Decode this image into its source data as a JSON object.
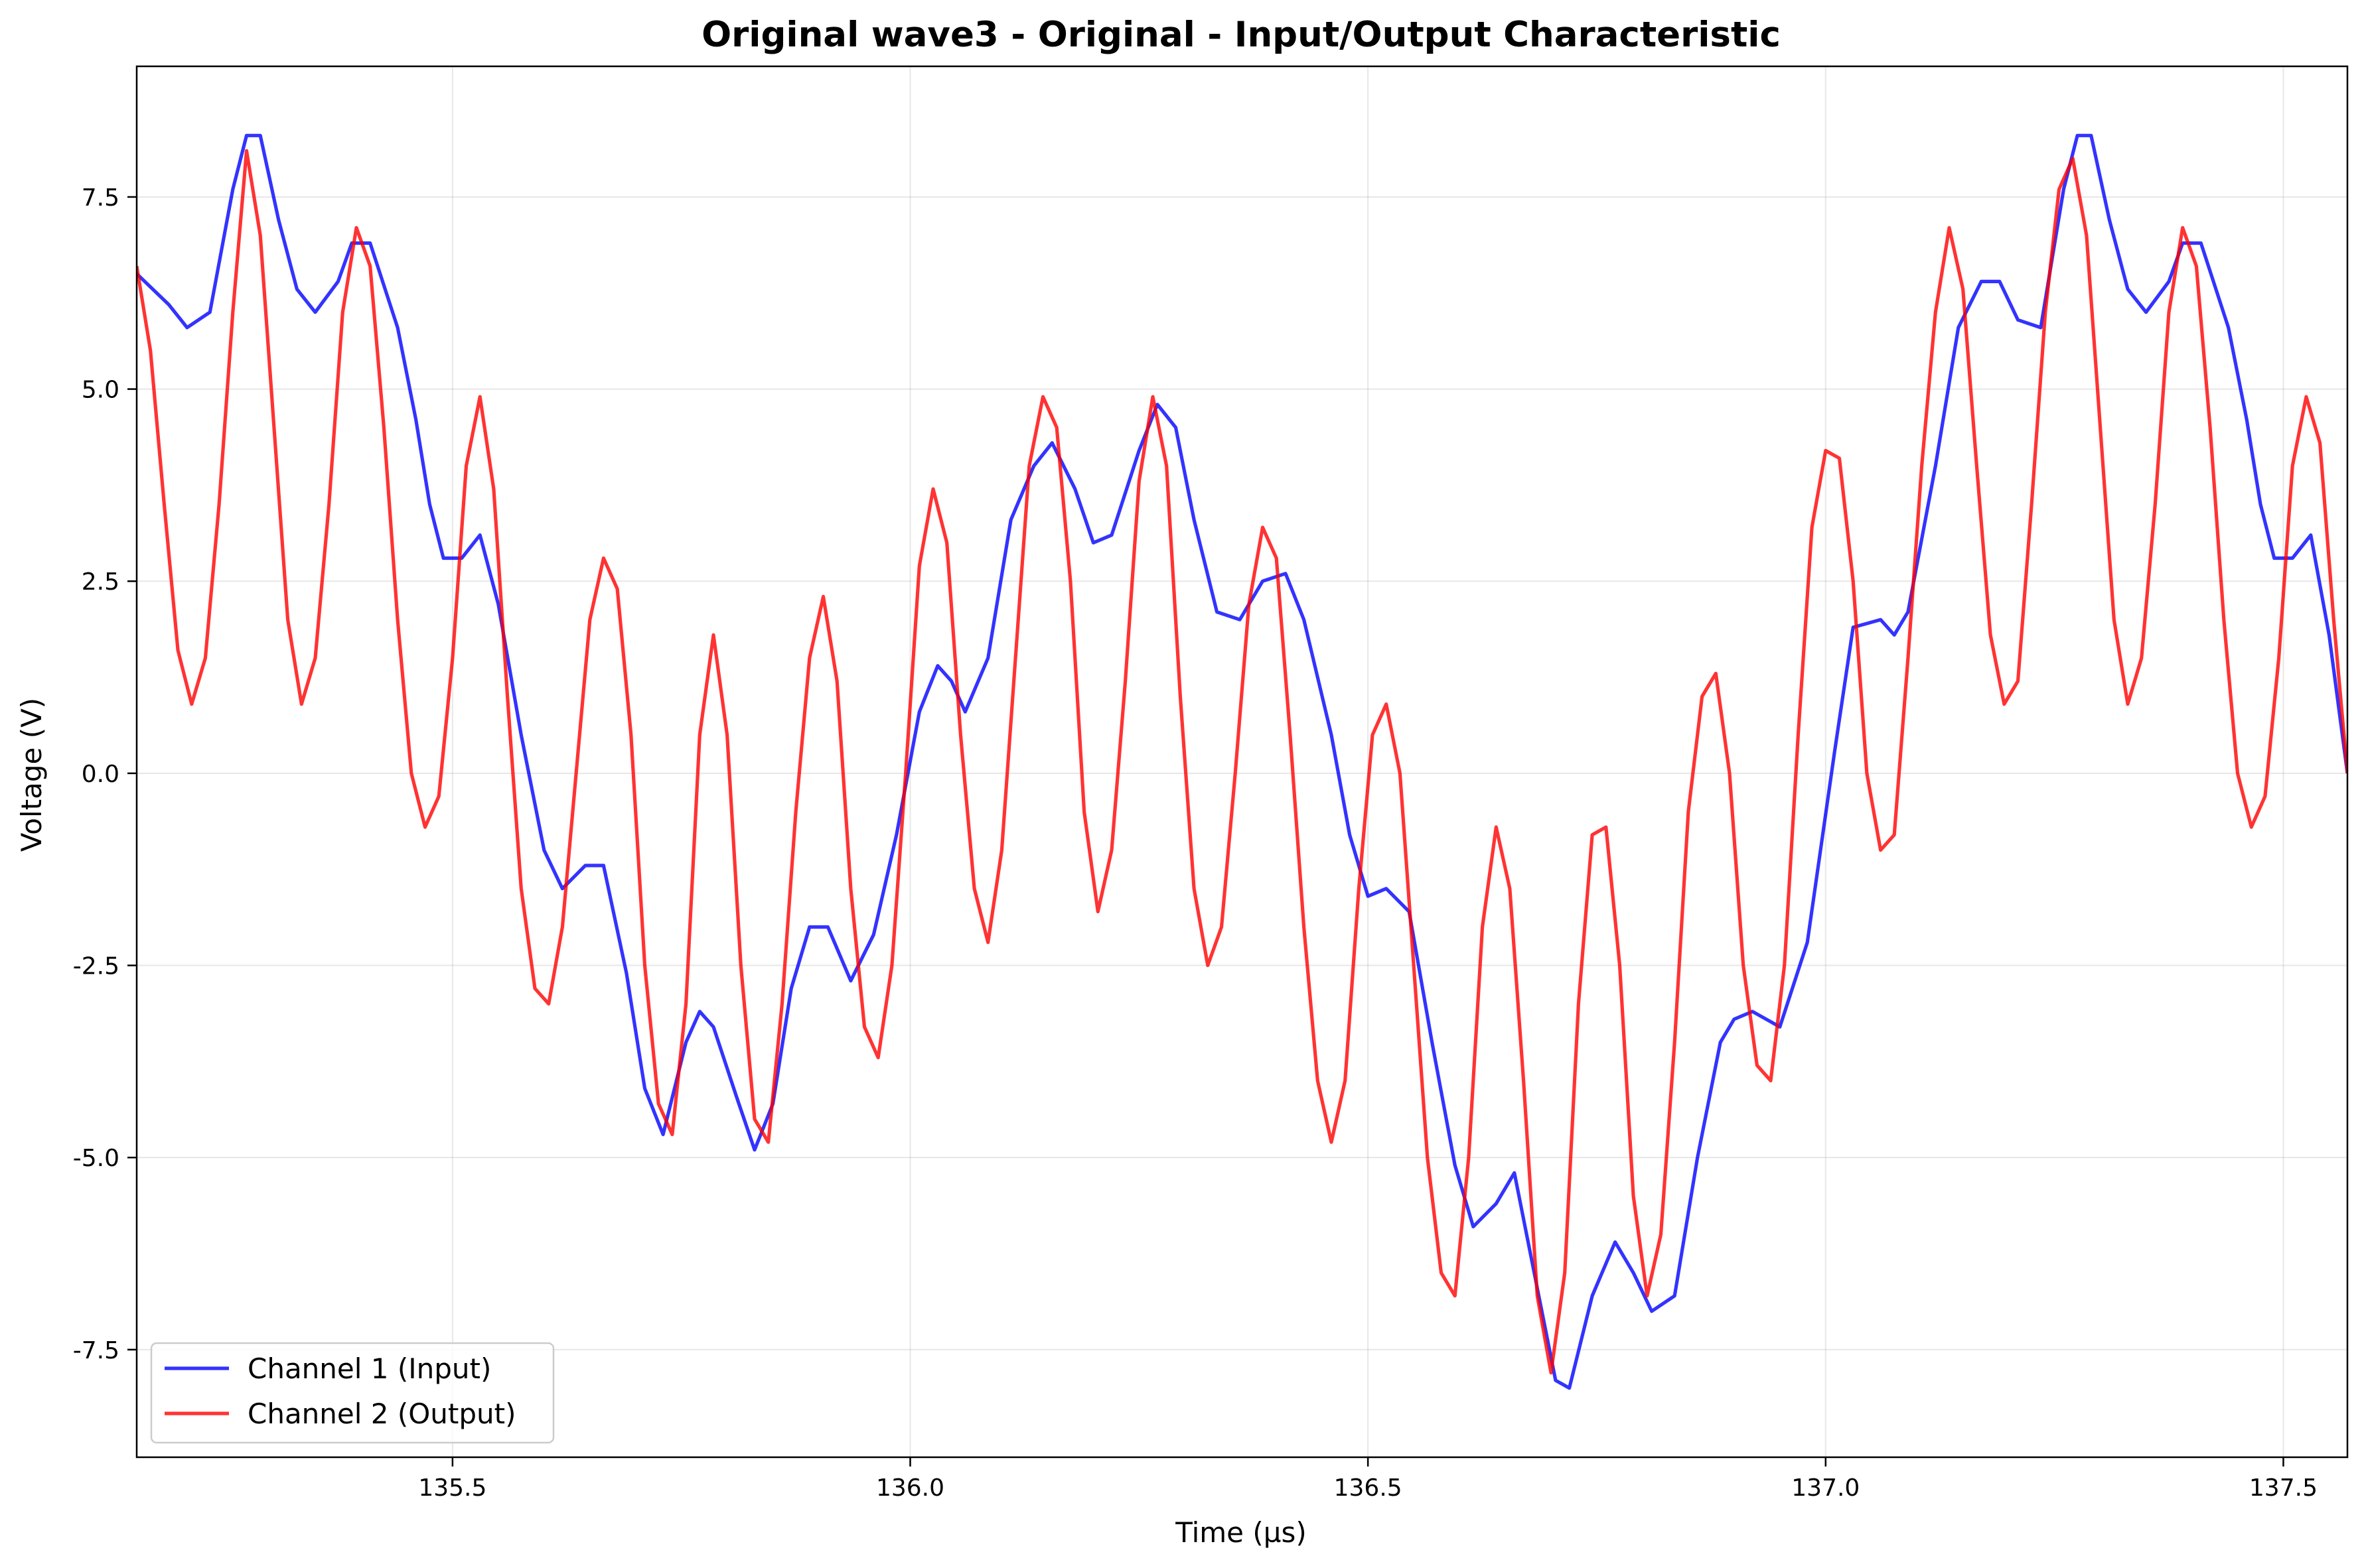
{
  "chart_data": {
    "type": "line",
    "title": "Original wave3 - Original - Input/Output Characteristic",
    "xlabel": "Time (µs)",
    "ylabel": "Voltage (V)",
    "xlim": [
      135.155,
      137.57
    ],
    "ylim": [
      -8.9,
      9.2
    ],
    "xticks": [
      135.5,
      136.0,
      136.5,
      137.0,
      137.5
    ],
    "xtick_labels": [
      "135.5",
      "136.0",
      "136.5",
      "137.0",
      "137.5"
    ],
    "yticks": [
      -7.5,
      -5.0,
      -2.5,
      0.0,
      2.5,
      5.0,
      7.5
    ],
    "ytick_labels": [
      "-7.5",
      "-5.0",
      "-2.5",
      "0.0",
      "2.5",
      "5.0",
      "7.5"
    ],
    "grid": true,
    "legend_position": "lower-left",
    "series": [
      {
        "name": "Channel 1 (Input)",
        "color": "#0000ff",
        "points": [
          [
            135.155,
            6.5
          ],
          [
            135.19,
            6.1
          ],
          [
            135.21,
            5.8
          ],
          [
            135.235,
            6.0
          ],
          [
            135.26,
            7.6
          ],
          [
            135.275,
            8.3
          ],
          [
            135.29,
            8.3
          ],
          [
            135.31,
            7.2
          ],
          [
            135.33,
            6.3
          ],
          [
            135.35,
            6.0
          ],
          [
            135.375,
            6.4
          ],
          [
            135.39,
            6.9
          ],
          [
            135.41,
            6.9
          ],
          [
            135.44,
            5.8
          ],
          [
            135.46,
            4.6
          ],
          [
            135.475,
            3.5
          ],
          [
            135.49,
            2.8
          ],
          [
            135.51,
            2.8
          ],
          [
            135.53,
            3.1
          ],
          [
            135.55,
            2.2
          ],
          [
            135.575,
            0.5
          ],
          [
            135.6,
            -1.0
          ],
          [
            135.62,
            -1.5
          ],
          [
            135.645,
            -1.2
          ],
          [
            135.665,
            -1.2
          ],
          [
            135.69,
            -2.6
          ],
          [
            135.71,
            -4.1
          ],
          [
            135.73,
            -4.7
          ],
          [
            135.755,
            -3.5
          ],
          [
            135.77,
            -3.1
          ],
          [
            135.785,
            -3.3
          ],
          [
            135.81,
            -4.2
          ],
          [
            135.83,
            -4.9
          ],
          [
            135.85,
            -4.3
          ],
          [
            135.87,
            -2.8
          ],
          [
            135.89,
            -2.0
          ],
          [
            135.91,
            -2.0
          ],
          [
            135.935,
            -2.7
          ],
          [
            135.96,
            -2.1
          ],
          [
            135.985,
            -0.8
          ],
          [
            136.01,
            0.8
          ],
          [
            136.03,
            1.4
          ],
          [
            136.045,
            1.2
          ],
          [
            136.06,
            0.8
          ],
          [
            136.085,
            1.5
          ],
          [
            136.11,
            3.3
          ],
          [
            136.135,
            4.0
          ],
          [
            136.155,
            4.3
          ],
          [
            136.18,
            3.7
          ],
          [
            136.2,
            3.0
          ],
          [
            136.22,
            3.1
          ],
          [
            136.25,
            4.2
          ],
          [
            136.27,
            4.8
          ],
          [
            136.29,
            4.5
          ],
          [
            136.31,
            3.3
          ],
          [
            136.335,
            2.1
          ],
          [
            136.36,
            2.0
          ],
          [
            136.385,
            2.5
          ],
          [
            136.41,
            2.6
          ],
          [
            136.43,
            2.0
          ],
          [
            136.46,
            0.5
          ],
          [
            136.48,
            -0.8
          ],
          [
            136.5,
            -1.6
          ],
          [
            136.52,
            -1.5
          ],
          [
            136.545,
            -1.8
          ],
          [
            136.57,
            -3.5
          ],
          [
            136.595,
            -5.1
          ],
          [
            136.615,
            -5.9
          ],
          [
            136.64,
            -5.6
          ],
          [
            136.66,
            -5.2
          ],
          [
            136.685,
            -6.7
          ],
          [
            136.705,
            -7.9
          ],
          [
            136.72,
            -8.0
          ],
          [
            136.745,
            -6.8
          ],
          [
            136.77,
            -6.1
          ],
          [
            136.79,
            -6.5
          ],
          [
            136.81,
            -7.0
          ],
          [
            136.835,
            -6.8
          ],
          [
            136.86,
            -5.0
          ],
          [
            136.885,
            -3.5
          ],
          [
            136.9,
            -3.2
          ],
          [
            136.92,
            -3.1
          ],
          [
            136.95,
            -3.3
          ],
          [
            136.98,
            -2.2
          ],
          [
            137.01,
            0.3
          ],
          [
            137.03,
            1.9
          ],
          [
            137.06,
            2.0
          ],
          [
            137.075,
            1.8
          ],
          [
            137.09,
            2.1
          ],
          [
            137.12,
            4.0
          ],
          [
            137.145,
            5.8
          ],
          [
            137.17,
            6.4
          ],
          [
            137.19,
            6.4
          ],
          [
            137.21,
            5.9
          ],
          [
            137.235,
            5.8
          ],
          [
            137.26,
            7.6
          ],
          [
            137.275,
            8.3
          ],
          [
            137.29,
            8.3
          ],
          [
            137.31,
            7.2
          ],
          [
            137.33,
            6.3
          ],
          [
            137.35,
            6.0
          ],
          [
            137.375,
            6.4
          ],
          [
            137.39,
            6.9
          ],
          [
            137.41,
            6.9
          ],
          [
            137.44,
            5.8
          ],
          [
            137.46,
            4.6
          ],
          [
            137.475,
            3.5
          ],
          [
            137.49,
            2.8
          ],
          [
            137.51,
            2.8
          ],
          [
            137.53,
            3.1
          ],
          [
            137.55,
            1.8
          ],
          [
            137.57,
            0.0
          ]
        ]
      },
      {
        "name": "Channel 2 (Output)",
        "color": "#ff0000",
        "points": [
          [
            135.155,
            6.6
          ],
          [
            135.17,
            5.5
          ],
          [
            135.185,
            3.5
          ],
          [
            135.2,
            1.6
          ],
          [
            135.215,
            0.9
          ],
          [
            135.23,
            1.5
          ],
          [
            135.245,
            3.5
          ],
          [
            135.26,
            6.0
          ],
          [
            135.275,
            8.1
          ],
          [
            135.29,
            7.0
          ],
          [
            135.305,
            4.5
          ],
          [
            135.32,
            2.0
          ],
          [
            135.335,
            0.9
          ],
          [
            135.35,
            1.5
          ],
          [
            135.365,
            3.5
          ],
          [
            135.38,
            6.0
          ],
          [
            135.395,
            7.1
          ],
          [
            135.41,
            6.6
          ],
          [
            135.425,
            4.5
          ],
          [
            135.44,
            2.0
          ],
          [
            135.455,
            0.0
          ],
          [
            135.47,
            -0.7
          ],
          [
            135.485,
            -0.3
          ],
          [
            135.5,
            1.5
          ],
          [
            135.515,
            4.0
          ],
          [
            135.53,
            4.9
          ],
          [
            135.545,
            3.7
          ],
          [
            135.56,
            1.0
          ],
          [
            135.575,
            -1.5
          ],
          [
            135.59,
            -2.8
          ],
          [
            135.605,
            -3.0
          ],
          [
            135.62,
            -2.0
          ],
          [
            135.635,
            0.0
          ],
          [
            135.65,
            2.0
          ],
          [
            135.665,
            2.8
          ],
          [
            135.68,
            2.4
          ],
          [
            135.695,
            0.5
          ],
          [
            135.71,
            -2.5
          ],
          [
            135.725,
            -4.3
          ],
          [
            135.74,
            -4.7
          ],
          [
            135.755,
            -3.0
          ],
          [
            135.77,
            0.5
          ],
          [
            135.785,
            1.8
          ],
          [
            135.8,
            0.5
          ],
          [
            135.815,
            -2.5
          ],
          [
            135.83,
            -4.5
          ],
          [
            135.845,
            -4.8
          ],
          [
            135.86,
            -3.0
          ],
          [
            135.875,
            -0.5
          ],
          [
            135.89,
            1.5
          ],
          [
            135.905,
            2.3
          ],
          [
            135.92,
            1.2
          ],
          [
            135.935,
            -1.5
          ],
          [
            135.95,
            -3.3
          ],
          [
            135.965,
            -3.7
          ],
          [
            135.98,
            -2.5
          ],
          [
            135.995,
            0.0
          ],
          [
            136.01,
            2.7
          ],
          [
            136.025,
            3.7
          ],
          [
            136.04,
            3.0
          ],
          [
            136.055,
            0.5
          ],
          [
            136.07,
            -1.5
          ],
          [
            136.085,
            -2.2
          ],
          [
            136.1,
            -1.0
          ],
          [
            136.115,
            1.5
          ],
          [
            136.13,
            4.0
          ],
          [
            136.145,
            4.9
          ],
          [
            136.16,
            4.5
          ],
          [
            136.175,
            2.5
          ],
          [
            136.19,
            -0.5
          ],
          [
            136.205,
            -1.8
          ],
          [
            136.22,
            -1.0
          ],
          [
            136.235,
            1.2
          ],
          [
            136.25,
            3.8
          ],
          [
            136.265,
            4.9
          ],
          [
            136.28,
            4.0
          ],
          [
            136.295,
            1.0
          ],
          [
            136.31,
            -1.5
          ],
          [
            136.325,
            -2.5
          ],
          [
            136.34,
            -2.0
          ],
          [
            136.355,
            0.0
          ],
          [
            136.37,
            2.2
          ],
          [
            136.385,
            3.2
          ],
          [
            136.4,
            2.8
          ],
          [
            136.415,
            0.5
          ],
          [
            136.43,
            -2.0
          ],
          [
            136.445,
            -4.0
          ],
          [
            136.46,
            -4.8
          ],
          [
            136.475,
            -4.0
          ],
          [
            136.49,
            -1.5
          ],
          [
            136.505,
            0.5
          ],
          [
            136.52,
            0.9
          ],
          [
            136.535,
            0.0
          ],
          [
            136.55,
            -2.5
          ],
          [
            136.565,
            -5.0
          ],
          [
            136.58,
            -6.5
          ],
          [
            136.595,
            -6.8
          ],
          [
            136.61,
            -5.0
          ],
          [
            136.625,
            -2.0
          ],
          [
            136.64,
            -0.7
          ],
          [
            136.655,
            -1.5
          ],
          [
            136.67,
            -4.0
          ],
          [
            136.685,
            -6.8
          ],
          [
            136.7,
            -7.8
          ],
          [
            136.715,
            -6.5
          ],
          [
            136.73,
            -3.0
          ],
          [
            136.745,
            -0.8
          ],
          [
            136.76,
            -0.7
          ],
          [
            136.775,
            -2.5
          ],
          [
            136.79,
            -5.5
          ],
          [
            136.805,
            -6.8
          ],
          [
            136.82,
            -6.0
          ],
          [
            136.835,
            -3.5
          ],
          [
            136.85,
            -0.5
          ],
          [
            136.865,
            1.0
          ],
          [
            136.88,
            1.3
          ],
          [
            136.895,
            0.0
          ],
          [
            136.91,
            -2.5
          ],
          [
            136.925,
            -3.8
          ],
          [
            136.94,
            -4.0
          ],
          [
            136.955,
            -2.5
          ],
          [
            136.97,
            0.5
          ],
          [
            136.985,
            3.2
          ],
          [
            137.0,
            4.2
          ],
          [
            137.015,
            4.1
          ],
          [
            137.03,
            2.5
          ],
          [
            137.045,
            0.0
          ],
          [
            137.06,
            -1.0
          ],
          [
            137.075,
            -0.8
          ],
          [
            137.09,
            1.5
          ],
          [
            137.105,
            4.0
          ],
          [
            137.12,
            6.0
          ],
          [
            137.135,
            7.1
          ],
          [
            137.15,
            6.3
          ],
          [
            137.165,
            4.0
          ],
          [
            137.18,
            1.8
          ],
          [
            137.195,
            0.9
          ],
          [
            137.21,
            1.2
          ],
          [
            137.225,
            3.5
          ],
          [
            137.24,
            6.0
          ],
          [
            137.255,
            7.6
          ],
          [
            137.27,
            8.0
          ],
          [
            137.285,
            7.0
          ],
          [
            137.3,
            4.5
          ],
          [
            137.315,
            2.0
          ],
          [
            137.33,
            0.9
          ],
          [
            137.345,
            1.5
          ],
          [
            137.36,
            3.5
          ],
          [
            137.375,
            6.0
          ],
          [
            137.39,
            7.1
          ],
          [
            137.405,
            6.6
          ],
          [
            137.42,
            4.5
          ],
          [
            137.435,
            2.0
          ],
          [
            137.45,
            0.0
          ],
          [
            137.465,
            -0.7
          ],
          [
            137.48,
            -0.3
          ],
          [
            137.495,
            1.5
          ],
          [
            137.51,
            4.0
          ],
          [
            137.525,
            4.9
          ],
          [
            137.54,
            4.3
          ],
          [
            137.555,
            2.0
          ],
          [
            137.57,
            0.0
          ]
        ]
      }
    ]
  }
}
